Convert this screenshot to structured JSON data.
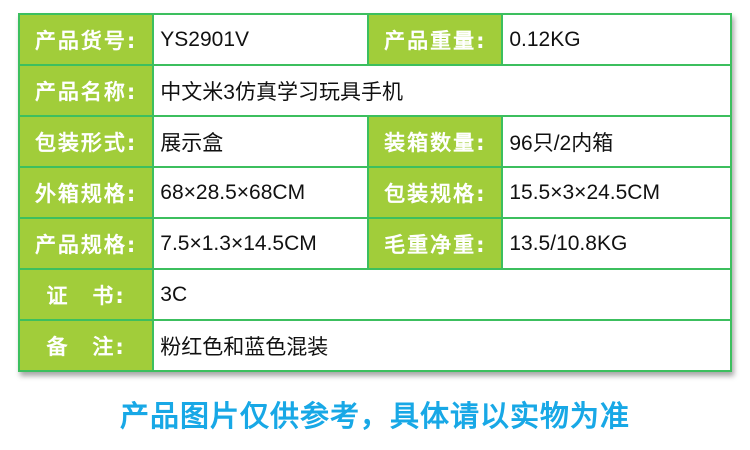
{
  "rows": [
    {
      "label1": "产品货号:",
      "value1": "YS2901V",
      "label2": "产品重量:",
      "value2": "0.12KG"
    },
    {
      "label1": "产品名称:",
      "value1": "中文米3仿真学习玩具手机"
    },
    {
      "label1": "包装形式:",
      "value1": "展示盒",
      "label2": "装箱数量:",
      "value2": "96只/2内箱"
    },
    {
      "label1": "外箱规格:",
      "value1": "68×28.5×68CM",
      "label2": "包装规格:",
      "value2": "15.5×3×24.5CM"
    },
    {
      "label1": "产品规格:",
      "value1": "7.5×1.3×14.5CM",
      "label2": "毛重净重:",
      "value2": "13.5/10.8KG"
    },
    {
      "label1": "证　书:",
      "value1": "3C"
    },
    {
      "label1": "备　注:",
      "value1": "粉红色和蓝色混装"
    }
  ],
  "footer": "产品图片仅供参考，具体请以实物为准",
  "colors": {
    "label_bg": "#a1cd3a",
    "border": "#3cbf5e",
    "footer": "#18a8e6"
  }
}
